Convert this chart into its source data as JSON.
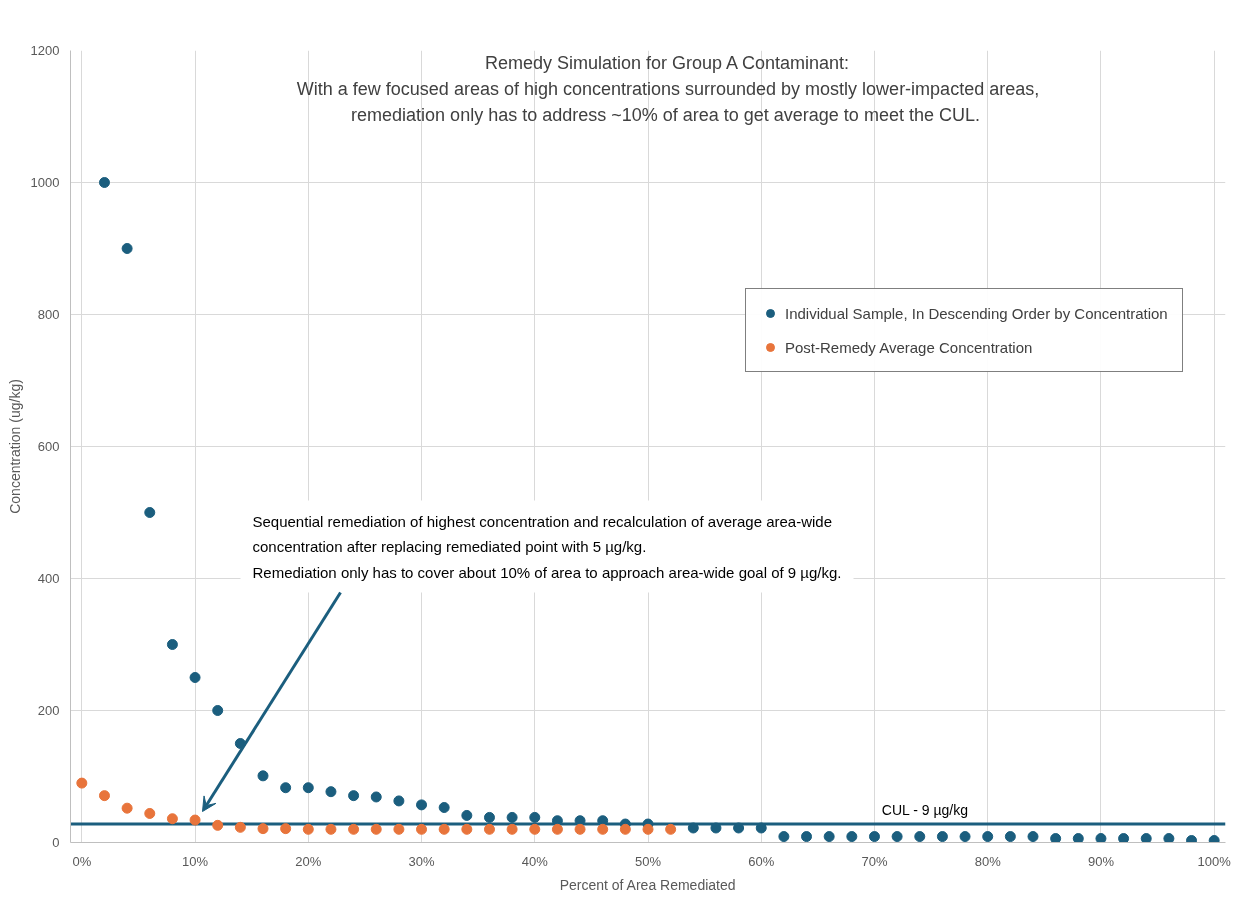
{
  "chart_data": {
    "type": "scatter",
    "title": "Remedy Simulation for Group A Contaminant:",
    "subtitle": "With a few focused areas of high concentrations surrounded by mostly lower-impacted areas,\nremediation only has to address  ~10% of area to get average to meet the CUL.",
    "xlabel": "Percent of Area Remediated",
    "ylabel": "Concentration (ug/kg)",
    "xlim": [
      -1,
      101
    ],
    "xticks": [
      {
        "value": 0,
        "label": "0%"
      },
      {
        "value": 10,
        "label": "10%"
      },
      {
        "value": 20,
        "label": "20%"
      },
      {
        "value": 30,
        "label": "30%"
      },
      {
        "value": 40,
        "label": "40%"
      },
      {
        "value": 50,
        "label": "50%"
      },
      {
        "value": 60,
        "label": "60%"
      },
      {
        "value": 70,
        "label": "70%"
      },
      {
        "value": 80,
        "label": "80%"
      },
      {
        "value": 90,
        "label": "90%"
      },
      {
        "value": 100,
        "label": "100%"
      }
    ],
    "ylim": [
      0,
      1200
    ],
    "yticks": [
      0,
      200,
      400,
      600,
      800,
      1000,
      1200
    ],
    "grid": true,
    "legend": "top right",
    "marker": "circle",
    "series": [
      {
        "name": "Individual Sample, In Descending Order by Concentration",
        "color": "#1b5e7e",
        "x": [
          2,
          4,
          6,
          8,
          10,
          12,
          14,
          16,
          18,
          20,
          22,
          24,
          26,
          28,
          30,
          32,
          34,
          36,
          38,
          40,
          42,
          44,
          46,
          48,
          50,
          52,
          54,
          56,
          58,
          60,
          62,
          64,
          66,
          68,
          70,
          72,
          74,
          76,
          78,
          80,
          82,
          84,
          86,
          88,
          90,
          92,
          94,
          96,
          98,
          100
        ],
        "values": [
          1000,
          900,
          500,
          300,
          250,
          200,
          150,
          101,
          83,
          83,
          77,
          71,
          69,
          63,
          57,
          53,
          41,
          38,
          38,
          38,
          33,
          33,
          33,
          28,
          28,
          null,
          22,
          22,
          22,
          22,
          9,
          9,
          9,
          9,
          9,
          9,
          9,
          9,
          9,
          9,
          9,
          9,
          6,
          6,
          6,
          6,
          6,
          6,
          3,
          3
        ]
      },
      {
        "name": "Post-Remedy Average Concentration",
        "color": "#e8743b",
        "x": [
          0,
          2,
          4,
          6,
          8,
          10,
          12,
          14,
          16,
          18,
          20,
          22,
          24,
          26,
          28,
          30,
          32,
          34,
          36,
          38,
          40,
          42,
          44,
          46,
          48,
          50,
          52
        ],
        "values": [
          90,
          71,
          52,
          44,
          36,
          34,
          26,
          23,
          21,
          21,
          20,
          20,
          20,
          20,
          20,
          20,
          20,
          20,
          20,
          20,
          20,
          20,
          20,
          20,
          20,
          20,
          20
        ]
      }
    ],
    "ref_lines": [
      {
        "axis": "y",
        "value": 28,
        "label": "CUL - 9 µg/kg",
        "color": "#1b5e7e"
      }
    ],
    "annotations": [
      "Sequential remediation of highest concentration and recalculation of average area-wide\nconcentration after replacing remediated point with 5 µg/kg.\nRemediation only has to cover about 10% of area to approach area-wide goal of 9 µg/kg."
    ]
  }
}
